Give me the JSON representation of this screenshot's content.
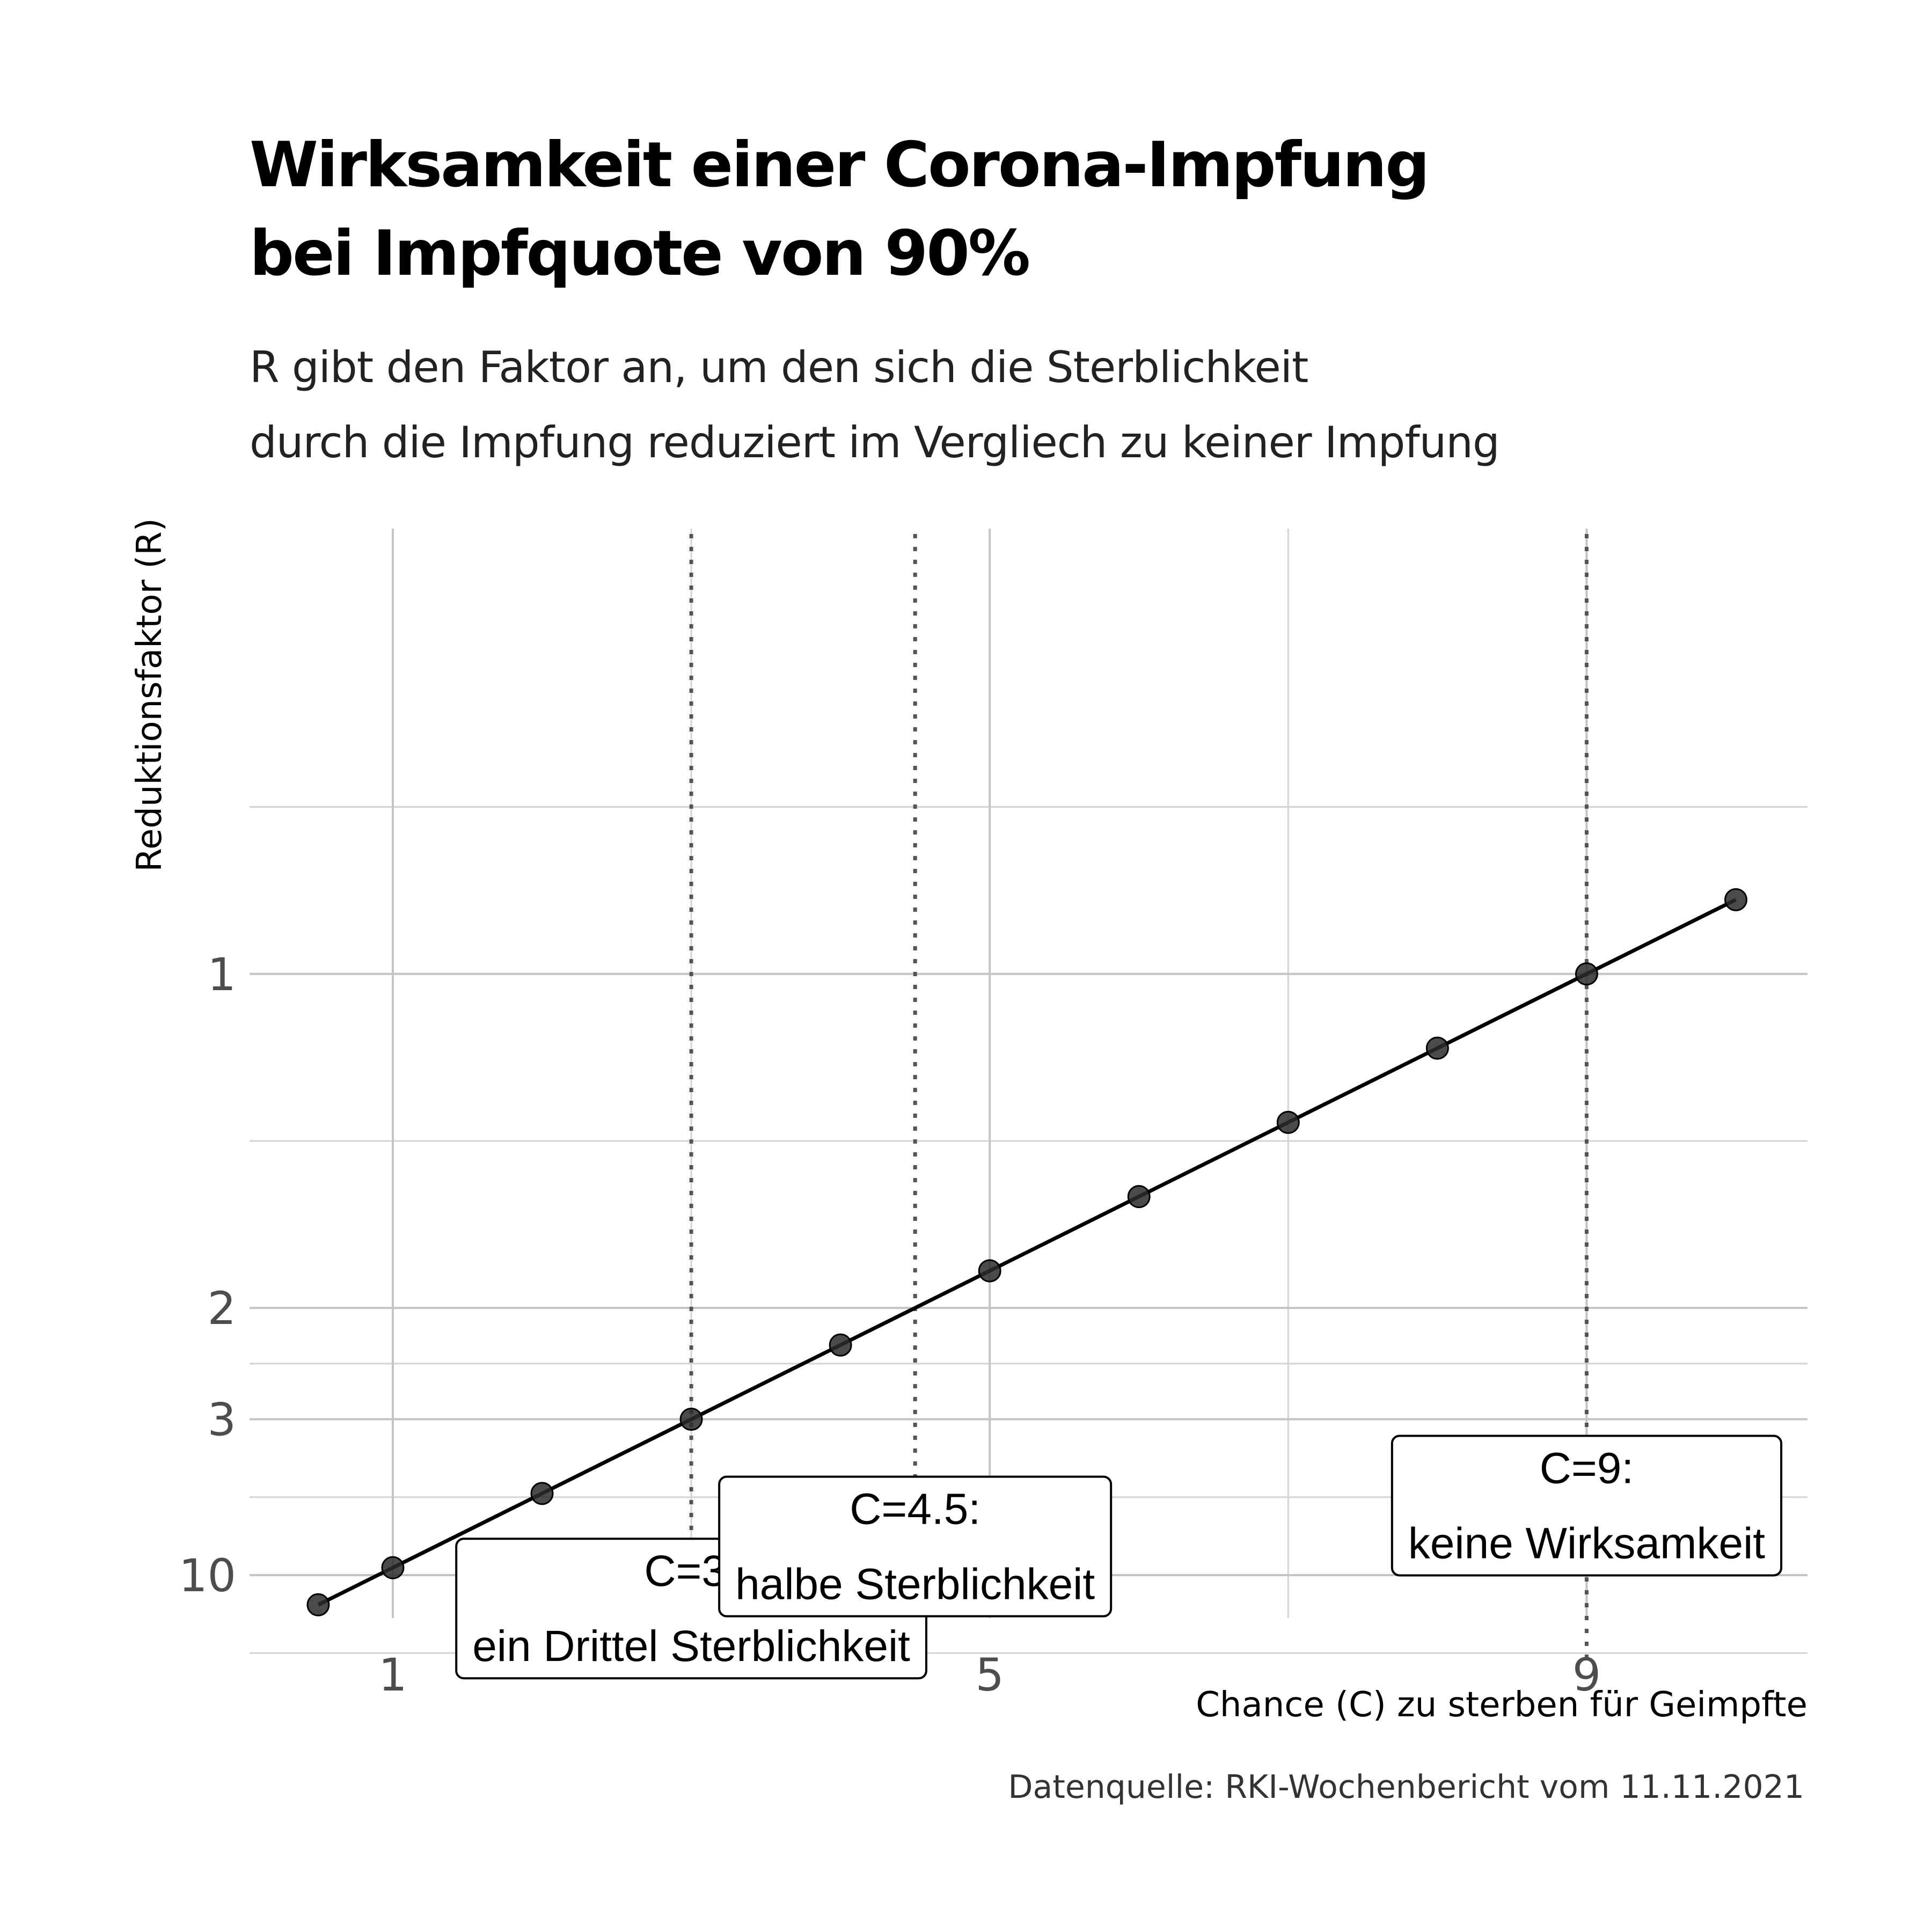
{
  "title_lines": [
    "Wirksamkeit einer Corona-Impfung",
    "bei Impfquote von 90%"
  ],
  "subtitle_lines": [
    "R gibt den Faktor an, um den sich die Sterblichkeit",
    "durch die Impfung reduziert im Vergliech zu keiner Impfung"
  ],
  "caption": "Datenquelle: RKI-Wochenbericht vom 11.11.2021",
  "chart_data": {
    "type": "line",
    "title": "Wirksamkeit einer Corona-Impfung bei Impfquote von 90%",
    "xlabel": "Chance (C) zu sterben für Geimpfte",
    "ylabel": "Reduktionsfaktor (R)",
    "x_ticks": [
      1,
      5,
      9
    ],
    "y_ticks": [
      1,
      2,
      3,
      10
    ],
    "xlim": [
      0.04,
      10.48
    ],
    "ylim": [
      0.6,
      28
    ],
    "y_scale": "reciprocal",
    "grid": true,
    "x": [
      0.5,
      1,
      2,
      3,
      4,
      5,
      6,
      7,
      8,
      9,
      10
    ],
    "y": [
      18,
      9,
      4.5,
      3,
      2.25,
      1.8,
      1.5,
      1.2857,
      1.125,
      1,
      0.9
    ],
    "vlines": [
      {
        "x": 3,
        "style": "dotted"
      },
      {
        "x": 4.5,
        "style": "dotted"
      },
      {
        "x": 9,
        "style": "dotted"
      }
    ],
    "annotations": [
      {
        "x": 3,
        "y": 20,
        "lines": [
          "C=3:",
          "ein Drittel Sterblichkeit"
        ]
      },
      {
        "x": 4.5,
        "y": 7,
        "lines": [
          "C=4.5:",
          "halbe Sterblichkeit"
        ]
      },
      {
        "x": 9,
        "y": 4.9,
        "lines": [
          "C=9:",
          "keine Wirksamkeit"
        ]
      }
    ]
  }
}
